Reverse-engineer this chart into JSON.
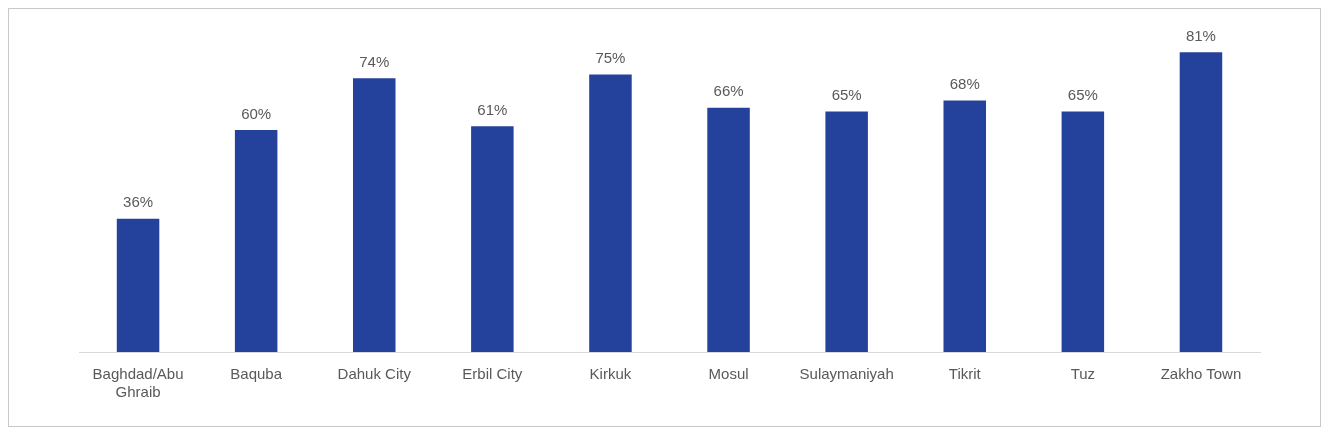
{
  "chart_data": {
    "type": "bar",
    "categories": [
      "Baghdad/Abu Ghraib",
      "Baquba",
      "Dahuk City",
      "Erbil City",
      "Kirkuk",
      "Mosul",
      "Sulaymaniyah",
      "Tikrit",
      "Tuz",
      "Zakho Town"
    ],
    "values": [
      36,
      60,
      74,
      61,
      75,
      66,
      65,
      68,
      65,
      81
    ],
    "value_labels": [
      "36%",
      "60%",
      "74%",
      "61%",
      "75%",
      "66%",
      "65%",
      "68%",
      "65%",
      "81%"
    ],
    "color": "#24429b",
    "grid": false,
    "legend": false
  }
}
